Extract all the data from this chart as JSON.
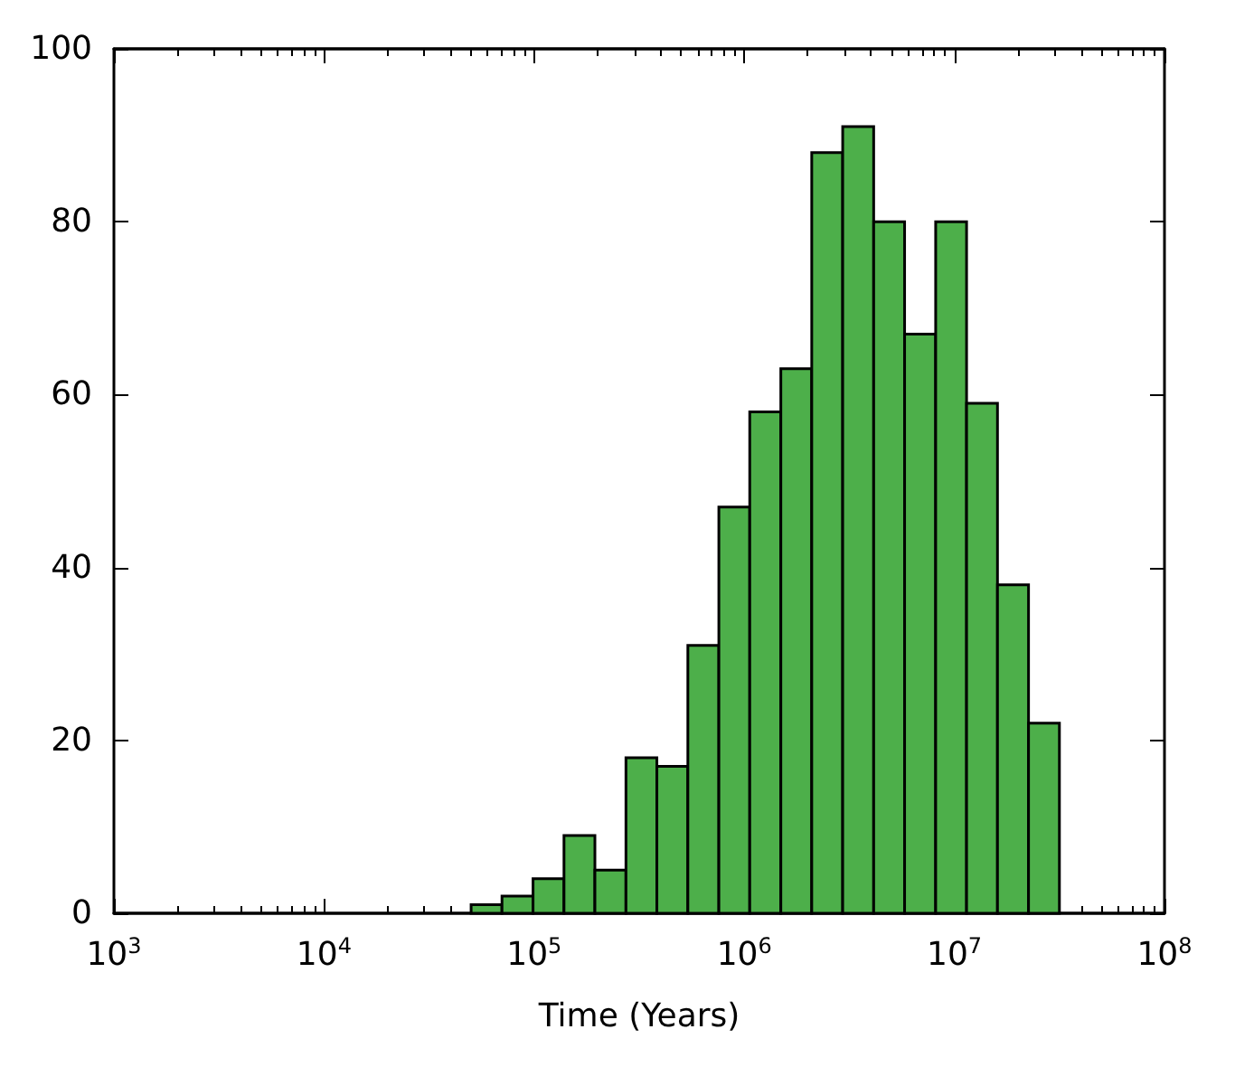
{
  "chart_data": {
    "type": "histogram",
    "xlabel": "Time (Years)",
    "color": "#4daf4a",
    "log": "x",
    "bins": [
      50119,
      70300,
      98800,
      138700,
      194600,
      273500,
      383800,
      539000,
      757000,
      1062000,
      1493000,
      2095000,
      2941000,
      4130000,
      5796000,
      8147000,
      11430000,
      16040000,
      22540000,
      31620000
    ],
    "values": [
      1,
      2,
      4,
      9,
      5,
      18,
      17,
      31,
      47,
      58,
      63,
      88,
      91,
      80,
      67,
      80,
      59,
      38,
      22
    ],
    "xlim": [
      1000,
      100000000
    ],
    "xticks": [
      {
        "value": 1000,
        "label": "10$^{3}$"
      },
      {
        "value": 2000,
        "label": null
      },
      {
        "value": 3000,
        "label": null
      },
      {
        "value": 4000,
        "label": null
      },
      {
        "value": 5000,
        "label": null
      },
      {
        "value": 6000,
        "label": null
      },
      {
        "value": 7000,
        "label": null
      },
      {
        "value": 8000,
        "label": null
      },
      {
        "value": 9000,
        "label": null
      },
      {
        "value": 10000,
        "label": "10$^{4}$"
      },
      {
        "value": 20000,
        "label": null
      },
      {
        "value": 30000,
        "label": null
      },
      {
        "value": 40000,
        "label": null
      },
      {
        "value": 50000,
        "label": null
      },
      {
        "value": 60000,
        "label": null
      },
      {
        "value": 70000,
        "label": null
      },
      {
        "value": 80000,
        "label": null
      },
      {
        "value": 90000,
        "label": null
      },
      {
        "value": 100000,
        "label": "10$^{5}$"
      },
      {
        "value": 200000,
        "label": null
      },
      {
        "value": 300000,
        "label": null
      },
      {
        "value": 400000,
        "label": null
      },
      {
        "value": 500000,
        "label": null
      },
      {
        "value": 600000,
        "label": null
      },
      {
        "value": 700000,
        "label": null
      },
      {
        "value": 800000,
        "label": null
      },
      {
        "value": 900000,
        "label": null
      },
      {
        "value": 1000000,
        "label": "10$^{6}$"
      },
      {
        "value": 2000000,
        "label": null
      },
      {
        "value": 3000000,
        "label": null
      },
      {
        "value": 4000000,
        "label": null
      },
      {
        "value": 5000000,
        "label": null
      },
      {
        "value": 6000000,
        "label": null
      },
      {
        "value": 7000000,
        "label": null
      },
      {
        "value": 8000000,
        "label": null
      },
      {
        "value": 9000000,
        "label": null
      },
      {
        "value": 10000000,
        "label": "10$^{7}$"
      },
      {
        "value": 20000000,
        "label": null
      },
      {
        "value": 30000000,
        "label": null
      },
      {
        "value": 40000000,
        "label": null
      },
      {
        "value": 50000000,
        "label": null
      },
      {
        "value": 60000000,
        "label": null
      },
      {
        "value": 70000000,
        "label": null
      },
      {
        "value": 80000000,
        "label": null
      },
      {
        "value": 90000000,
        "label": null
      },
      {
        "value": 100000000,
        "label": "10$^{8}$"
      }
    ],
    "ylim": [
      0,
      100
    ],
    "yticks": [
      0,
      20,
      40,
      60,
      80,
      100
    ]
  }
}
